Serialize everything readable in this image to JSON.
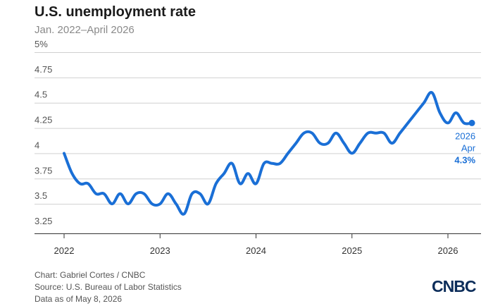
{
  "header": {
    "title": "U.S. unemployment rate",
    "subtitle": "Jan. 2022–April 2026"
  },
  "footer": {
    "credit": "Chart: Gabriel Cortes / CNBC",
    "source": "Source: U.S. Bureau of Labor Statistics",
    "date": "Data as of May 8, 2026"
  },
  "logo": {
    "brand": "CNBC",
    "color": "#0c2d5a"
  },
  "colors": {
    "line": "#1a6fd6",
    "grid": "#d0d0d0",
    "annotation": "#1a6fd6"
  },
  "chart_data": {
    "type": "line",
    "title": "U.S. unemployment rate",
    "subtitle": "Jan. 2022–April 2026",
    "xlabel": "",
    "ylabel": "",
    "ylim": [
      3.25,
      5
    ],
    "y_ticks": [
      3.25,
      3.5,
      3.75,
      4,
      4.25,
      4.5,
      4.75,
      5
    ],
    "y_tick_labels": [
      "3.25",
      "3.5",
      "3.75",
      "4",
      "4.25",
      "4.5",
      "4.75",
      "5%"
    ],
    "x_tick_labels": [
      "2022",
      "2023",
      "2024",
      "2025",
      "2026"
    ],
    "grid": true,
    "x": [
      "2022-01",
      "2022-02",
      "2022-03",
      "2022-04",
      "2022-05",
      "2022-06",
      "2022-07",
      "2022-08",
      "2022-09",
      "2022-10",
      "2022-11",
      "2022-12",
      "2023-01",
      "2023-02",
      "2023-03",
      "2023-04",
      "2023-05",
      "2023-06",
      "2023-07",
      "2023-08",
      "2023-09",
      "2023-10",
      "2023-11",
      "2023-12",
      "2024-01",
      "2024-02",
      "2024-03",
      "2024-04",
      "2024-05",
      "2024-06",
      "2024-07",
      "2024-08",
      "2024-09",
      "2024-10",
      "2024-11",
      "2024-12",
      "2025-01",
      "2025-02",
      "2025-03",
      "2025-04",
      "2025-05",
      "2025-06",
      "2025-07",
      "2025-08",
      "2025-09",
      "2025-10",
      "2025-11",
      "2025-12",
      "2026-01",
      "2026-02",
      "2026-03",
      "2026-04"
    ],
    "series": [
      {
        "values": [
          4.0,
          3.8,
          3.7,
          3.7,
          3.6,
          3.6,
          3.5,
          3.6,
          3.5,
          3.6,
          3.6,
          3.5,
          3.5,
          3.6,
          3.5,
          3.4,
          3.6,
          3.6,
          3.5,
          3.7,
          3.8,
          3.9,
          3.7,
          3.8,
          3.7,
          3.9,
          3.9,
          3.9,
          4.0,
          4.1,
          4.2,
          4.2,
          4.1,
          4.1,
          4.2,
          4.1,
          4.0,
          4.1,
          4.2,
          4.2,
          4.2,
          4.1,
          4.2,
          4.3,
          4.4,
          4.5,
          4.6,
          4.4,
          4.3,
          4.4,
          4.3,
          4.3
        ]
      }
    ],
    "annotation": {
      "year": "2026",
      "month": "Apr",
      "value": "4.3%"
    }
  }
}
